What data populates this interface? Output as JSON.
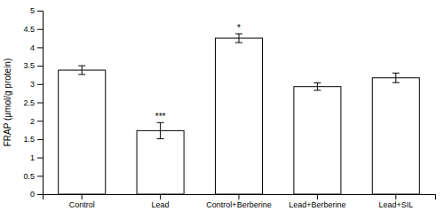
{
  "chart_data": {
    "type": "bar",
    "categories": [
      "Control",
      "Lead",
      "Control+Berberine",
      "Lead+Berberine",
      "Lead+SIL"
    ],
    "values": [
      3.38,
      1.73,
      4.25,
      2.93,
      3.17
    ],
    "errors": [
      0.12,
      0.22,
      0.12,
      0.1,
      0.13
    ],
    "color": "#ffffff",
    "ylabel": "FRAP (μmol/g protein)",
    "ylim": [
      0,
      5
    ],
    "yticks": [
      0,
      0.5,
      1,
      1.5,
      2,
      2.5,
      3,
      3.5,
      4,
      4.5,
      5
    ],
    "annotations": [
      {
        "text": "***",
        "category": "Lead"
      },
      {
        "text": "*",
        "category": "Control+Berberine"
      }
    ],
    "grid": false
  }
}
